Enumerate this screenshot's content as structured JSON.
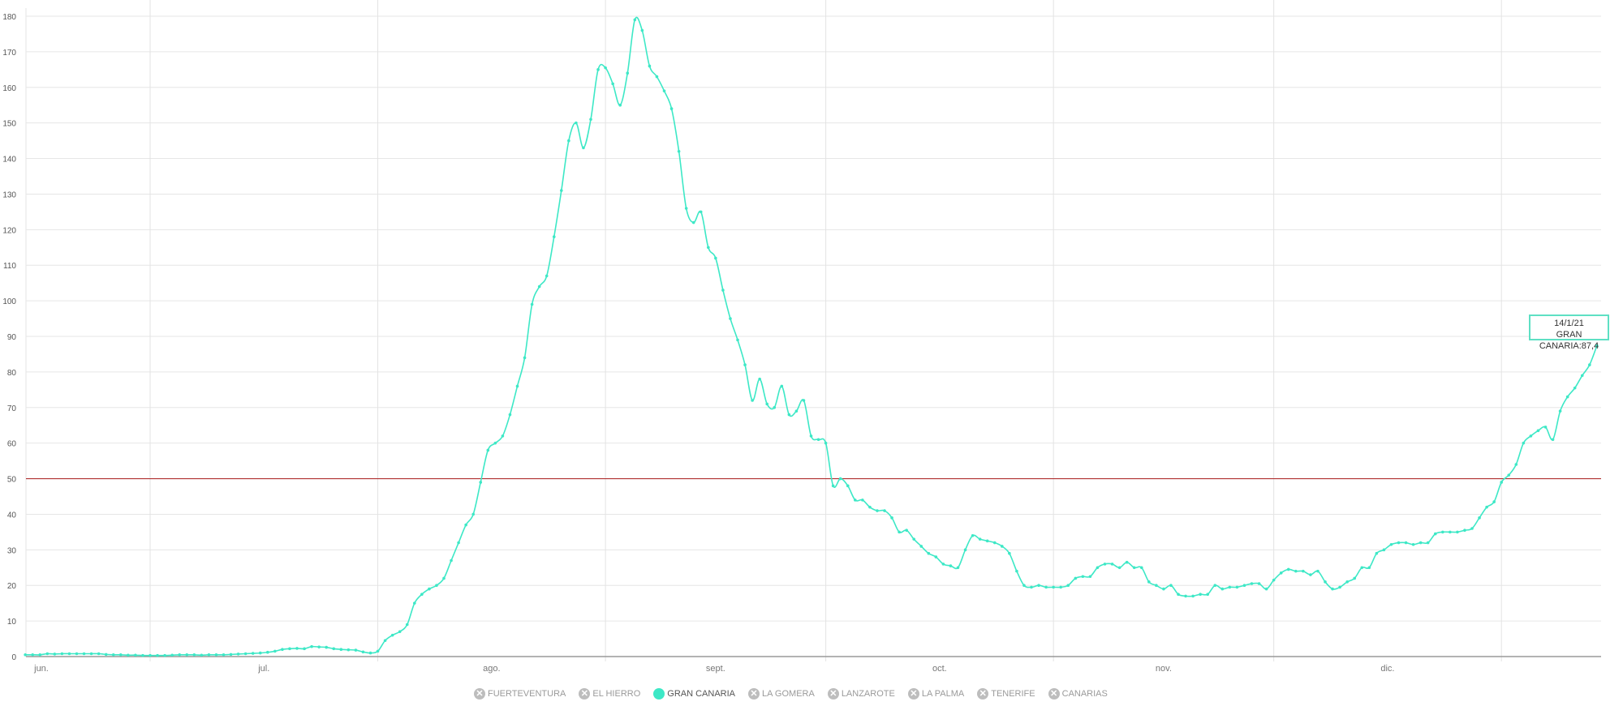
{
  "chart_data": {
    "type": "line",
    "title": "",
    "xlabel": "",
    "ylabel": "",
    "ylim": [
      0,
      180
    ],
    "yticks": [
      0,
      10,
      20,
      30,
      40,
      50,
      60,
      70,
      80,
      90,
      100,
      110,
      120,
      130,
      140,
      150,
      160,
      170,
      180
    ],
    "month_labels": [
      "jun.",
      "jul.",
      "ago.",
      "sept.",
      "oct.",
      "nov.",
      "dic."
    ],
    "grid": true,
    "reference_line": {
      "value": 50,
      "color": "#b03030"
    },
    "series": [
      {
        "name": "GRAN CANARIA",
        "color": "#3de8c6",
        "daily_by_month": [
          {
            "year": 2020,
            "month": 6,
            "start_day": 14,
            "values": [
              0.5,
              0.5,
              0.5,
              0.8,
              0.7,
              0.8,
              0.8,
              0.8,
              0.8,
              0.8,
              0.8,
              0.6,
              0.5,
              0.5,
              0.4,
              0.4,
              0.3
            ]
          },
          {
            "year": 2020,
            "month": 7,
            "start_day": 1,
            "values": [
              0.3,
              0.3,
              0.3,
              0.4,
              0.5,
              0.5,
              0.5,
              0.4,
              0.5,
              0.5,
              0.5,
              0.6,
              0.7,
              0.8,
              0.9,
              1.0,
              1.2,
              1.5,
              2.0,
              2.2,
              2.3,
              2.2,
              2.8,
              2.7,
              2.6,
              2.2,
              2.0,
              1.9,
              1.8,
              1.3,
              1.0
            ]
          },
          {
            "year": 2020,
            "month": 8,
            "start_day": 1,
            "values": [
              1.5,
              4.5,
              6,
              7,
              9,
              15,
              17.5,
              19,
              20,
              22,
              27,
              32,
              37,
              40,
              49,
              58,
              60,
              62,
              68,
              76,
              84,
              99,
              104,
              107,
              118,
              131,
              145,
              150,
              143,
              151,
              165
            ]
          },
          {
            "year": 2020,
            "month": 9,
            "start_day": 1,
            "values": [
              165.5,
              161,
              155,
              164,
              179,
              176,
              166,
              163,
              159,
              154,
              142,
              126,
              122,
              125,
              115,
              112,
              103,
              95,
              89,
              82,
              72,
              78,
              71,
              70,
              76,
              68,
              69,
              72,
              62,
              61
            ]
          },
          {
            "year": 2020,
            "month": 10,
            "start_day": 1,
            "values": [
              60,
              48,
              50,
              48,
              44,
              44,
              42,
              41,
              41,
              39,
              35,
              35.5,
              33,
              31,
              29,
              28,
              26,
              25.5,
              25,
              30,
              34,
              33,
              32.5,
              32,
              31,
              29,
              24,
              20,
              19.5,
              20,
              19.5
            ]
          },
          {
            "year": 2020,
            "month": 11,
            "start_day": 1,
            "values": [
              19.5,
              19.5,
              20,
              22,
              22.5,
              22.5,
              25,
              26,
              26,
              25,
              26.5,
              25,
              25,
              21,
              20,
              19,
              20,
              17.5,
              17,
              17,
              17.5,
              17.5,
              20,
              19,
              19.5,
              19.5,
              20,
              20.5,
              20.5,
              19
            ]
          },
          {
            "year": 2020,
            "month": 12,
            "start_day": 1,
            "values": [
              21.5,
              23.5,
              24.5,
              24,
              24,
              23,
              24,
              21,
              19,
              19.5,
              21,
              22,
              25,
              25,
              29,
              30,
              31.5,
              32,
              32,
              31.5,
              32,
              32,
              34.5,
              35,
              35,
              35,
              35.5,
              36,
              39,
              42,
              43.5
            ]
          },
          {
            "year": 2021,
            "month": 1,
            "start_day": 1,
            "values": [
              49,
              51,
              54,
              60,
              62,
              63.5,
              64.5,
              61,
              69,
              73,
              75.5,
              79,
              82,
              87.4
            ]
          }
        ]
      }
    ],
    "tooltip": {
      "date": "14/1/21",
      "label": "GRAN CANARIA:87,4"
    },
    "legend": {
      "placement": "bottom",
      "items": [
        {
          "label": "FUERTEVENTURA",
          "active": false
        },
        {
          "label": "EL HIERRO",
          "active": false
        },
        {
          "label": "GRAN CANARIA",
          "active": true
        },
        {
          "label": "LA GOMERA",
          "active": false
        },
        {
          "label": "LANZAROTE",
          "active": false
        },
        {
          "label": "LA PALMA",
          "active": false
        },
        {
          "label": "TENERIFE",
          "active": false
        },
        {
          "label": "CANARIAS",
          "active": false
        }
      ]
    }
  }
}
